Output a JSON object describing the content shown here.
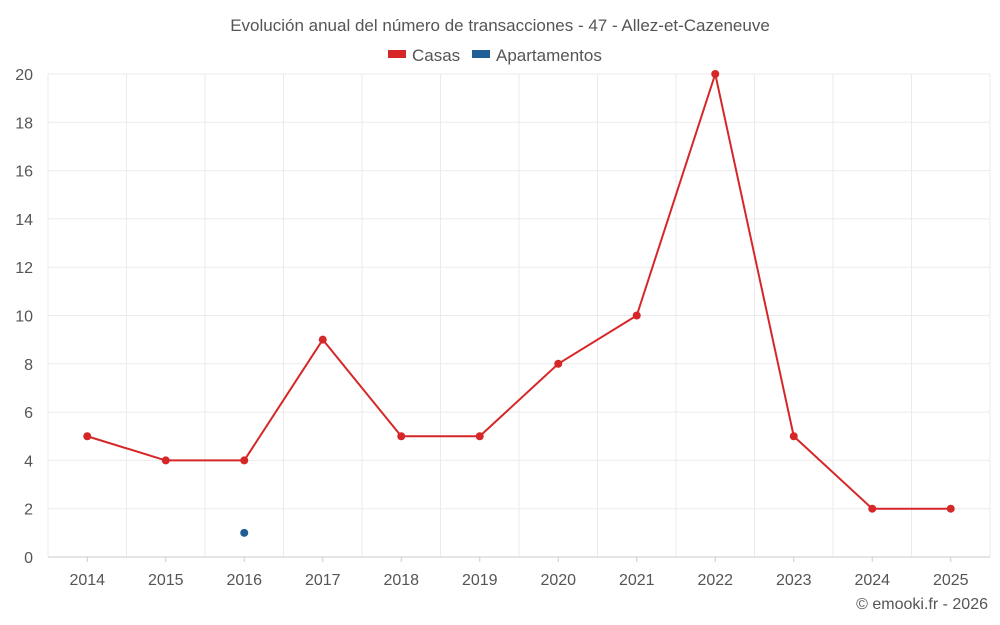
{
  "colors": {
    "casas": "#d62728",
    "apartamentos": "#1f5f96"
  },
  "credit": "© emooki.fr - 2026",
  "chart_data": {
    "type": "line",
    "title": "Evolución anual del número de transacciones - 47 - Allez-et-Cazeneuve",
    "categories": [
      "2014",
      "2015",
      "2016",
      "2017",
      "2018",
      "2019",
      "2020",
      "2021",
      "2022",
      "2023",
      "2024",
      "2025"
    ],
    "series": [
      {
        "name": "Casas",
        "color": "#d62728",
        "values": [
          5,
          4,
          4,
          9,
          5,
          5,
          8,
          10,
          20,
          5,
          2,
          2
        ]
      },
      {
        "name": "Apartamentos",
        "color": "#1f5f96",
        "values": [
          null,
          null,
          1,
          null,
          null,
          null,
          null,
          null,
          null,
          null,
          null,
          null
        ]
      }
    ],
    "ylim": [
      0,
      20
    ],
    "yticks": [
      0,
      2,
      4,
      6,
      8,
      10,
      12,
      14,
      16,
      18,
      20
    ],
    "xlabel": "",
    "ylabel": "",
    "grid": true,
    "legend": "top-center"
  }
}
